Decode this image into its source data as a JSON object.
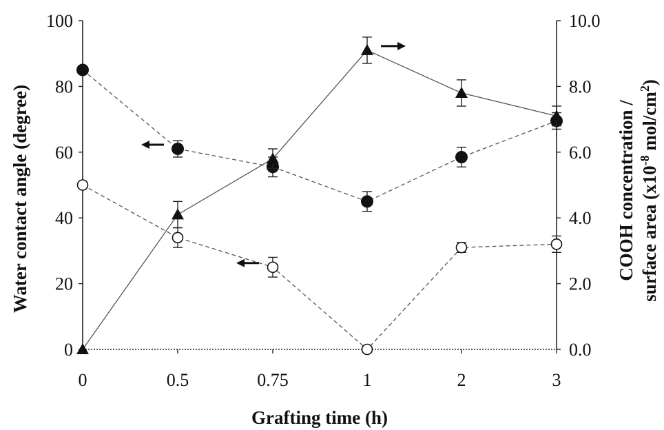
{
  "chart_data": {
    "type": "line",
    "xlabel": "Grafting time (h)",
    "ylabel": "Water contact angle (degree)",
    "y2label_line1": "COOH concentration /",
    "y2label_line2_prefix": "surface area (x10",
    "y2label_line2_exp1": "-8",
    "y2label_line2_mid": " mol/cm",
    "y2label_line2_exp2": "2",
    "y2label_line2_suffix": ")",
    "categories": [
      "0",
      "0.5",
      "0.75",
      "1",
      "2",
      "3"
    ],
    "yticks": [
      "0",
      "20",
      "40",
      "60",
      "80",
      "100"
    ],
    "y2ticks": [
      "0.0",
      "2.0",
      "4.0",
      "6.0",
      "8.0",
      "10.0"
    ],
    "ylim": [
      0,
      100
    ],
    "y2lim": [
      0,
      10
    ],
    "grid": false,
    "series": [
      {
        "marker": "filled-circle",
        "axis": "left",
        "line_style": "dashed",
        "values": [
          85,
          61,
          55.5,
          45,
          58.5,
          69.5
        ],
        "errors": [
          0,
          2.5,
          3,
          3,
          3,
          2.5
        ],
        "arrow": "left",
        "arrow_at": [
          0.5,
          61
        ]
      },
      {
        "marker": "open-circle",
        "axis": "left",
        "line_style": "dashed",
        "values": [
          50,
          34,
          25,
          0,
          31,
          32
        ],
        "errors": [
          0,
          3,
          3,
          0,
          1.5,
          2.5
        ],
        "arrow": "left",
        "arrow_at": [
          0.75,
          25
        ]
      },
      {
        "marker": "filled-triangle",
        "axis": "right",
        "line_style": "solid",
        "values": [
          0,
          4.1,
          5.8,
          9.1,
          7.8,
          7.1
        ],
        "errors": [
          0,
          0.4,
          0.3,
          0.4,
          0.4,
          0.3
        ],
        "arrow": "right",
        "arrow_at": [
          1,
          9.1
        ]
      }
    ]
  }
}
